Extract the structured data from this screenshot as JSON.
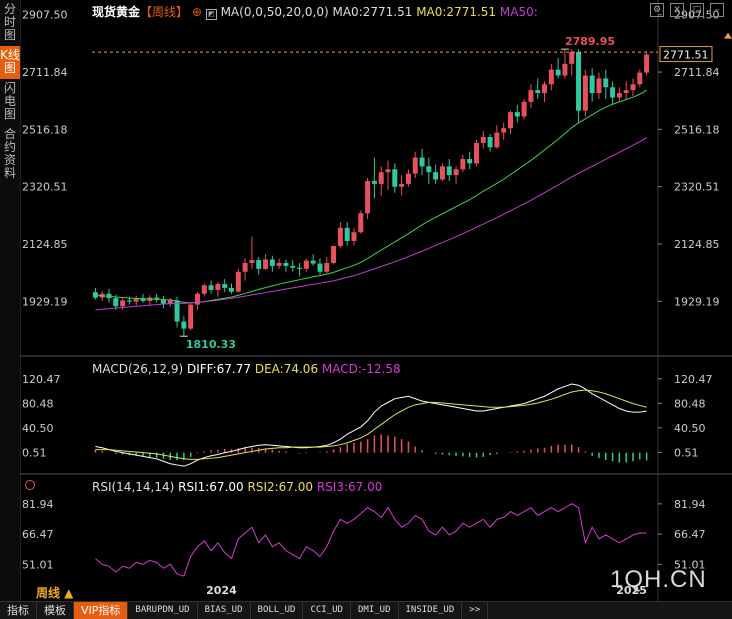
{
  "sidebar": {
    "tabs": [
      {
        "label": "分时图",
        "active": false
      },
      {
        "label": "K线图",
        "active": true
      },
      {
        "label": "闪电图",
        "active": false
      },
      {
        "label": "合约资料",
        "active": false
      }
    ]
  },
  "header": {
    "instrument": "现货黄金",
    "period": "【周线】",
    "ma_label": "MA(0,0,50,20,0,0)",
    "ma0_a": "MA0:2771.51",
    "ma0_b": "MA0:2771.51",
    "ma50": "MA50:",
    "icons": [
      "settings-icon",
      "close-icon",
      "maximize-icon",
      "minimize-icon"
    ]
  },
  "macd": {
    "label": "MACD(26,12,9)",
    "diff": "DIFF:67.77",
    "dea": "DEA:74.06",
    "macd": "MACD:-12.58"
  },
  "rsi": {
    "label": "RSI(14,14,14)",
    "rsi1": "RSI1:67.00",
    "rsi2": "RSI2:67.00",
    "rsi3": "RSI3:67.00"
  },
  "bottom": {
    "period": "周线 ▲",
    "tabs": [
      {
        "label": "指标",
        "active": false,
        "zh": true
      },
      {
        "label": "模板",
        "active": false,
        "zh": true
      },
      {
        "label": "VIP指标",
        "active": true,
        "zh": true
      },
      {
        "label": "BARUPDN_UD",
        "active": false,
        "zh": false
      },
      {
        "label": "BIAS_UD",
        "active": false,
        "zh": false
      },
      {
        "label": "BOLL_UD",
        "active": false,
        "zh": false
      },
      {
        "label": "CCI_UD",
        "active": false,
        "zh": false
      },
      {
        "label": "DMI_UD",
        "active": false,
        "zh": false
      },
      {
        "label": "INSIDE_UD",
        "active": false,
        "zh": false
      },
      {
        "label": ">>",
        "active": false,
        "zh": false
      }
    ]
  },
  "watermark": "1QH.CN",
  "colors": {
    "up": "#e8505b",
    "down": "#2ec9a0",
    "ma20": "#39d353",
    "ma50": "#c33bd3",
    "diff": "#ffffff",
    "dea": "#e8e04a",
    "rsi": "#d63ad1",
    "accent": "#e85c0d"
  },
  "chart_data": [
    {
      "type": "candlestick",
      "title": "现货黄金 周线",
      "y_ticks": [
        2907.5,
        2711.84,
        2516.18,
        2320.51,
        2124.85,
        1929.19
      ],
      "ylim": [
        1780,
        2910
      ],
      "x_ticks": [
        "2024",
        "2025"
      ],
      "annotations": [
        {
          "text": "2789.95",
          "type": "high"
        },
        {
          "text": "1810.33",
          "type": "low"
        },
        {
          "text": "2771.51",
          "type": "last-price"
        }
      ],
      "candles": [
        [
          1960,
          1975,
          1935,
          1942
        ],
        [
          1942,
          1965,
          1930,
          1955
        ],
        [
          1955,
          1972,
          1925,
          1940
        ],
        [
          1940,
          1952,
          1900,
          1912
        ],
        [
          1912,
          1940,
          1900,
          1932
        ],
        [
          1932,
          1945,
          1918,
          1928
        ],
        [
          1928,
          1948,
          1915,
          1940
        ],
        [
          1940,
          1955,
          1925,
          1930
        ],
        [
          1930,
          1950,
          1915,
          1942
        ],
        [
          1942,
          1955,
          1925,
          1935
        ],
        [
          1935,
          1948,
          1905,
          1920
        ],
        [
          1920,
          1940,
          1910,
          1932
        ],
        [
          1932,
          1945,
          1840,
          1860
        ],
        [
          1860,
          1878,
          1810,
          1836
        ],
        [
          1836,
          1925,
          1830,
          1918
        ],
        [
          1918,
          1960,
          1900,
          1955
        ],
        [
          1955,
          1990,
          1945,
          1984
        ],
        [
          1984,
          2000,
          1955,
          1968
        ],
        [
          1968,
          1995,
          1945,
          1988
        ],
        [
          1988,
          2005,
          1960,
          1975
        ],
        [
          1975,
          1990,
          1955,
          1962
        ],
        [
          1962,
          2040,
          1958,
          2030
        ],
        [
          2030,
          2075,
          2000,
          2060
        ],
        [
          2060,
          2150,
          2040,
          2070
        ],
        [
          2070,
          2080,
          2020,
          2040
        ],
        [
          2040,
          2090,
          2035,
          2072
        ],
        [
          2072,
          2085,
          2030,
          2050
        ],
        [
          2050,
          2075,
          2040,
          2060
        ],
        [
          2060,
          2072,
          2030,
          2050
        ],
        [
          2050,
          2070,
          2030,
          2044
        ],
        [
          2044,
          2060,
          2015,
          2040
        ],
        [
          2040,
          2075,
          2030,
          2068
        ],
        [
          2068,
          2090,
          2050,
          2058
        ],
        [
          2058,
          2075,
          2020,
          2030
        ],
        [
          2030,
          2080,
          2025,
          2060
        ],
        [
          2060,
          2120,
          2055,
          2118
        ],
        [
          2118,
          2200,
          2110,
          2180
        ],
        [
          2180,
          2200,
          2120,
          2135
        ],
        [
          2135,
          2180,
          2120,
          2165
        ],
        [
          2165,
          2240,
          2160,
          2230
        ],
        [
          2230,
          2350,
          2210,
          2340
        ],
        [
          2340,
          2420,
          2280,
          2330
        ],
        [
          2330,
          2390,
          2290,
          2370
        ],
        [
          2370,
          2410,
          2310,
          2380
        ],
        [
          2380,
          2400,
          2300,
          2320
        ],
        [
          2320,
          2360,
          2290,
          2330
        ],
        [
          2330,
          2380,
          2320,
          2365
        ],
        [
          2365,
          2440,
          2350,
          2420
        ],
        [
          2420,
          2450,
          2360,
          2390
        ],
        [
          2390,
          2420,
          2330,
          2370
        ],
        [
          2370,
          2395,
          2330,
          2345
        ],
        [
          2345,
          2400,
          2340,
          2390
        ],
        [
          2390,
          2415,
          2340,
          2360
        ],
        [
          2360,
          2390,
          2330,
          2380
        ],
        [
          2380,
          2430,
          2370,
          2415
        ],
        [
          2415,
          2440,
          2380,
          2400
        ],
        [
          2400,
          2480,
          2390,
          2470
        ],
        [
          2470,
          2510,
          2450,
          2490
        ],
        [
          2490,
          2500,
          2440,
          2455
        ],
        [
          2455,
          2530,
          2450,
          2505
        ],
        [
          2505,
          2540,
          2480,
          2520
        ],
        [
          2520,
          2580,
          2500,
          2575
        ],
        [
          2575,
          2600,
          2540,
          2560
        ],
        [
          2560,
          2620,
          2550,
          2610
        ],
        [
          2610,
          2670,
          2590,
          2650
        ],
        [
          2650,
          2690,
          2620,
          2640
        ],
        [
          2640,
          2680,
          2610,
          2670
        ],
        [
          2670,
          2740,
          2650,
          2720
        ],
        [
          2720,
          2760,
          2690,
          2700
        ],
        [
          2700,
          2790,
          2690,
          2740
        ],
        [
          2740,
          2790,
          2700,
          2780
        ],
        [
          2780,
          2790,
          2540,
          2580
        ],
        [
          2580,
          2720,
          2560,
          2700
        ],
        [
          2700,
          2725,
          2610,
          2640
        ],
        [
          2640,
          2710,
          2620,
          2690
        ],
        [
          2690,
          2720,
          2620,
          2660
        ],
        [
          2660,
          2680,
          2600,
          2625
        ],
        [
          2625,
          2660,
          2610,
          2640
        ],
        [
          2640,
          2680,
          2620,
          2650
        ],
        [
          2650,
          2690,
          2630,
          2670
        ],
        [
          2670,
          2720,
          2660,
          2710
        ],
        [
          2710,
          2780,
          2700,
          2771.51
        ]
      ],
      "ma20": [
        1950,
        1948,
        1946,
        1944,
        1942,
        1940,
        1939,
        1938,
        1937,
        1936,
        1935,
        1934,
        1930,
        1926,
        1924,
        1925,
        1928,
        1932,
        1936,
        1940,
        1944,
        1950,
        1956,
        1963,
        1970,
        1976,
        1982,
        1988,
        1993,
        1998,
        2003,
        2008,
        2013,
        2017,
        2022,
        2028,
        2036,
        2044,
        2052,
        2062,
        2075,
        2090,
        2104,
        2118,
        2132,
        2146,
        2160,
        2175,
        2190,
        2204,
        2216,
        2228,
        2240,
        2252,
        2264,
        2276,
        2290,
        2305,
        2318,
        2332,
        2346,
        2362,
        2378,
        2394,
        2410,
        2428,
        2446,
        2464,
        2482,
        2502,
        2522,
        2538,
        2552,
        2566,
        2580,
        2592,
        2602,
        2610,
        2618,
        2626,
        2636,
        2650
      ],
      "ma50": [
        1900,
        1902,
        1904,
        1906,
        1908,
        1910,
        1912,
        1914,
        1916,
        1918,
        1920,
        1921,
        1922,
        1922,
        1924,
        1926,
        1928,
        1930,
        1933,
        1936,
        1939,
        1943,
        1947,
        1951,
        1955,
        1959,
        1963,
        1967,
        1971,
        1975,
        1979,
        1983,
        1987,
        1991,
        1995,
        1999,
        2005,
        2011,
        2017,
        2024,
        2032,
        2040,
        2048,
        2056,
        2064,
        2073,
        2082,
        2091,
        2100,
        2110,
        2120,
        2130,
        2140,
        2150,
        2160,
        2171,
        2182,
        2193,
        2204,
        2215,
        2226,
        2238,
        2250,
        2262,
        2274,
        2287,
        2300,
        2313,
        2326,
        2340,
        2354,
        2366,
        2378,
        2390,
        2402,
        2414,
        2426,
        2438,
        2450,
        2462,
        2474,
        2488
      ]
    },
    {
      "type": "line+bar",
      "title": "MACD(26,12,9)",
      "y_ticks": [
        120.47,
        80.48,
        40.5,
        0.51
      ],
      "ylim": [
        -25,
        125
      ],
      "series": [
        {
          "name": "DIFF",
          "values": [
            10,
            8,
            5,
            2,
            0,
            -2,
            -4,
            -6,
            -8,
            -10,
            -14,
            -18,
            -20,
            -22,
            -18,
            -12,
            -8,
            -5,
            -3,
            0,
            2,
            5,
            8,
            10,
            12,
            13,
            12,
            11,
            10,
            9,
            8,
            8,
            9,
            10,
            12,
            16,
            22,
            30,
            36,
            42,
            52,
            66,
            76,
            82,
            88,
            90,
            92,
            88,
            84,
            82,
            80,
            78,
            76,
            74,
            72,
            70,
            68,
            68,
            70,
            72,
            74,
            76,
            78,
            80,
            84,
            88,
            92,
            98,
            104,
            108,
            112,
            110,
            104,
            96,
            90,
            84,
            78,
            72,
            68,
            66,
            66,
            67.77
          ]
        },
        {
          "name": "DEA",
          "values": [
            5,
            5,
            5,
            4,
            3,
            2,
            1,
            0,
            -1,
            -2,
            -4,
            -6,
            -8,
            -10,
            -11,
            -11,
            -10,
            -9,
            -8,
            -6,
            -4,
            -2,
            0,
            2,
            4,
            6,
            7,
            8,
            8,
            9,
            9,
            9,
            9,
            9,
            10,
            11,
            13,
            16,
            20,
            24,
            30,
            38,
            46,
            54,
            62,
            68,
            74,
            78,
            80,
            82,
            82,
            81,
            80,
            79,
            78,
            77,
            76,
            75,
            74,
            74,
            74,
            75,
            76,
            77,
            79,
            81,
            84,
            87,
            91,
            95,
            99,
            101,
            102,
            101,
            99,
            96,
            92,
            88,
            84,
            80,
            77,
            74.06
          ]
        },
        {
          "name": "MACD",
          "values": [
            5,
            3,
            0,
            -2,
            -3,
            -4,
            -5,
            -6,
            -7,
            -8,
            -10,
            -12,
            -12,
            -12,
            -7,
            -1,
            2,
            4,
            5,
            6,
            6,
            7,
            8,
            8,
            8,
            7,
            5,
            3,
            2,
            0,
            -1,
            -1,
            0,
            1,
            2,
            5,
            9,
            14,
            16,
            18,
            22,
            28,
            30,
            28,
            26,
            22,
            18,
            10,
            4,
            0,
            -2,
            -3,
            -4,
            -5,
            -6,
            -7,
            -8,
            -7,
            -4,
            -2,
            0,
            1,
            2,
            3,
            5,
            7,
            8,
            11,
            13,
            13,
            13,
            9,
            2,
            -5,
            -9,
            -12,
            -14,
            -16,
            -16,
            -14,
            -11,
            -12.58
          ]
        }
      ]
    },
    {
      "type": "line",
      "title": "RSI(14,14,14)",
      "y_ticks": [
        81.94,
        66.47,
        51.01
      ],
      "ylim": [
        44,
        88
      ],
      "series": [
        {
          "name": "RSI1",
          "values": [
            54,
            51,
            50,
            47,
            50,
            49,
            52,
            51,
            53,
            52,
            49,
            51,
            46,
            45,
            55,
            60,
            63,
            58,
            62,
            57,
            54,
            64,
            67,
            70,
            62,
            66,
            60,
            62,
            58,
            56,
            54,
            60,
            58,
            55,
            60,
            68,
            74,
            72,
            74,
            77,
            80,
            78,
            75,
            80,
            74,
            70,
            72,
            76,
            74,
            68,
            66,
            70,
            66,
            68,
            72,
            70,
            72,
            74,
            70,
            74,
            75,
            78,
            76,
            78,
            80,
            76,
            78,
            80,
            78,
            80,
            82,
            80,
            62,
            70,
            64,
            66,
            64,
            62,
            64,
            66,
            67,
            67
          ]
        }
      ]
    }
  ]
}
